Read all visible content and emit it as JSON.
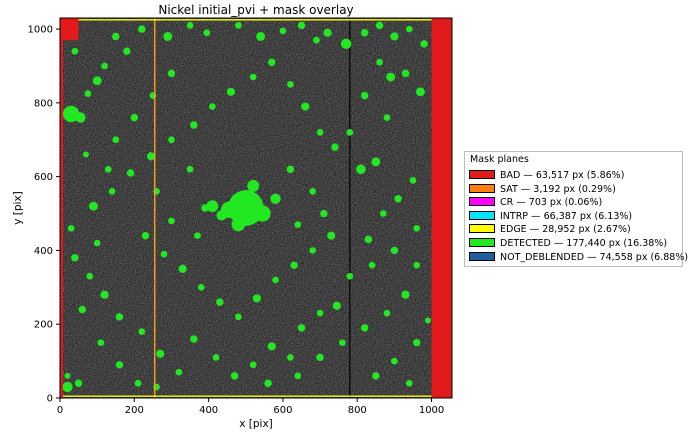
{
  "chart_data": {
    "type": "heatmap",
    "title": "Nickel initial_pvi + mask overlay",
    "xlabel": "x [pix]",
    "ylabel": "y [pix]",
    "xlim": [
      0,
      1055
    ],
    "ylim": [
      0,
      1030
    ],
    "x_ticks": [
      "0",
      "200",
      "400",
      "600",
      "800",
      "1000"
    ],
    "y_ticks": [
      "0",
      "200",
      "400",
      "600",
      "800",
      "1000"
    ],
    "x_tick_values": [
      0,
      200,
      400,
      600,
      800,
      1000
    ],
    "y_tick_values": [
      0,
      200,
      400,
      600,
      800,
      1000
    ],
    "grid": false,
    "legend_placement": "outside-right",
    "legend_title": "Mask planes",
    "series": [
      {
        "name": "BAD — 63,517 px (5.86%)",
        "mask": "BAD",
        "pixels": 63517,
        "percent": 5.86,
        "color": "#e31a1c"
      },
      {
        "name": "SAT — 3,192 px (0.29%)",
        "mask": "SAT",
        "pixels": 3192,
        "percent": 0.29,
        "color": "#ff7f0e"
      },
      {
        "name": "CR — 703 px (0.06%)",
        "mask": "CR",
        "pixels": 703,
        "percent": 0.06,
        "color": "#ff00ff"
      },
      {
        "name": "INTRP — 66,387 px (6.13%)",
        "mask": "INTRP",
        "pixels": 66387,
        "percent": 6.13,
        "color": "#00e5ff"
      },
      {
        "name": "EDGE — 28,952 px (2.67%)",
        "mask": "EDGE",
        "pixels": 28952,
        "percent": 2.67,
        "color": "#ffff00"
      },
      {
        "name": "DETECTED — 177,440 px (16.38%)",
        "mask": "DETECTED",
        "pixels": 177440,
        "percent": 16.38,
        "color": "#22e822"
      },
      {
        "name": "NOT_DEBLENDED — 74,558 px (6.88%)",
        "mask": "NOT_DEBLENDED",
        "pixels": 74558,
        "percent": 6.88,
        "color": "#1f5fa0"
      }
    ],
    "bad_regions": [
      {
        "x": [
          1000,
          1055
        ],
        "y": [
          0,
          1030
        ]
      },
      {
        "x": [
          0,
          50
        ],
        "y": [
          970,
          1030
        ]
      },
      {
        "x": [
          0,
          8
        ],
        "y": [
          0,
          1030
        ]
      }
    ],
    "edge_lines": [
      {
        "axis": "x",
        "value": 255
      },
      {
        "axis": "y",
        "value": 5
      },
      {
        "axis": "y",
        "value": 1025
      }
    ],
    "bad_column": {
      "x": 780
    },
    "detections": [
      [
        500,
        515,
        48
      ],
      [
        455,
        510,
        22
      ],
      [
        545,
        500,
        22
      ],
      [
        480,
        470,
        18
      ],
      [
        410,
        520,
        16
      ],
      [
        580,
        540,
        14
      ],
      [
        520,
        575,
        16
      ],
      [
        435,
        495,
        14
      ],
      [
        390,
        515,
        10
      ],
      [
        30,
        770,
        22
      ],
      [
        55,
        760,
        14
      ],
      [
        20,
        30,
        14
      ],
      [
        50,
        40,
        10
      ],
      [
        20,
        60,
        8
      ],
      [
        100,
        860,
        12
      ],
      [
        75,
        825,
        9
      ],
      [
        150,
        980,
        10
      ],
      [
        220,
        1000,
        10
      ],
      [
        290,
        980,
        12
      ],
      [
        350,
        1010,
        9
      ],
      [
        395,
        990,
        9
      ],
      [
        480,
        1010,
        9
      ],
      [
        540,
        980,
        12
      ],
      [
        600,
        995,
        9
      ],
      [
        650,
        1010,
        10
      ],
      [
        690,
        970,
        9
      ],
      [
        720,
        990,
        11
      ],
      [
        770,
        960,
        14
      ],
      [
        820,
        990,
        10
      ],
      [
        860,
        1010,
        10
      ],
      [
        900,
        980,
        11
      ],
      [
        940,
        1000,
        9
      ],
      [
        980,
        960,
        10
      ],
      [
        970,
        830,
        12
      ],
      [
        930,
        880,
        10
      ],
      [
        880,
        760,
        9
      ],
      [
        890,
        870,
        12
      ],
      [
        850,
        640,
        12
      ],
      [
        810,
        620,
        13
      ],
      [
        950,
        590,
        9
      ],
      [
        910,
        540,
        10
      ],
      [
        870,
        500,
        9
      ],
      [
        960,
        460,
        9
      ],
      [
        830,
        430,
        10
      ],
      [
        780,
        330,
        9
      ],
      [
        745,
        250,
        11
      ],
      [
        700,
        230,
        9
      ],
      [
        650,
        190,
        10
      ],
      [
        620,
        110,
        9
      ],
      [
        570,
        140,
        11
      ],
      [
        520,
        90,
        9
      ],
      [
        470,
        60,
        10
      ],
      [
        420,
        110,
        9
      ],
      [
        360,
        160,
        10
      ],
      [
        320,
        70,
        9
      ],
      [
        270,
        120,
        11
      ],
      [
        220,
        180,
        9
      ],
      [
        160,
        220,
        10
      ],
      [
        120,
        280,
        11
      ],
      [
        80,
        330,
        9
      ],
      [
        40,
        380,
        10
      ],
      [
        30,
        460,
        9
      ],
      [
        90,
        520,
        12
      ],
      [
        140,
        560,
        9
      ],
      [
        190,
        610,
        10
      ],
      [
        245,
        655,
        11
      ],
      [
        300,
        700,
        9
      ],
      [
        360,
        740,
        10
      ],
      [
        410,
        790,
        9
      ],
      [
        460,
        830,
        11
      ],
      [
        520,
        870,
        9
      ],
      [
        570,
        910,
        10
      ],
      [
        620,
        850,
        9
      ],
      [
        660,
        790,
        11
      ],
      [
        700,
        720,
        9
      ],
      [
        740,
        680,
        10
      ],
      [
        780,
        720,
        9
      ],
      [
        820,
        820,
        10
      ],
      [
        860,
        910,
        9
      ],
      [
        150,
        700,
        9
      ],
      [
        200,
        760,
        10
      ],
      [
        250,
        820,
        9
      ],
      [
        300,
        880,
        10
      ],
      [
        120,
        900,
        9
      ],
      [
        180,
        940,
        10
      ],
      [
        40,
        940,
        9
      ],
      [
        230,
        440,
        10
      ],
      [
        280,
        390,
        9
      ],
      [
        330,
        350,
        11
      ],
      [
        380,
        300,
        9
      ],
      [
        430,
        260,
        10
      ],
      [
        480,
        220,
        9
      ],
      [
        530,
        270,
        11
      ],
      [
        580,
        320,
        9
      ],
      [
        630,
        360,
        10
      ],
      [
        680,
        400,
        9
      ],
      [
        730,
        440,
        11
      ],
      [
        100,
        420,
        9
      ],
      [
        60,
        240,
        10
      ],
      [
        110,
        150,
        9
      ],
      [
        160,
        90,
        10
      ],
      [
        210,
        40,
        9
      ],
      [
        260,
        30,
        9
      ],
      [
        560,
        40,
        10
      ],
      [
        640,
        60,
        9
      ],
      [
        700,
        110,
        10
      ],
      [
        760,
        150,
        9
      ],
      [
        820,
        190,
        10
      ],
      [
        880,
        230,
        9
      ],
      [
        930,
        280,
        11
      ],
      [
        960,
        360,
        9
      ],
      [
        900,
        400,
        10
      ],
      [
        840,
        360,
        9
      ],
      [
        960,
        150,
        10
      ],
      [
        900,
        100,
        9
      ],
      [
        850,
        60,
        10
      ],
      [
        940,
        40,
        9
      ],
      [
        990,
        210,
        8
      ],
      [
        130,
        620,
        9
      ],
      [
        70,
        660,
        8
      ],
      [
        260,
        560,
        9
      ],
      [
        300,
        480,
        9
      ],
      [
        620,
        620,
        10
      ],
      [
        680,
        560,
        9
      ],
      [
        710,
        500,
        10
      ],
      [
        350,
        620,
        9
      ],
      [
        370,
        440,
        9
      ],
      [
        640,
        470,
        9
      ]
    ]
  },
  "colors": {
    "background": "#2b2b2b",
    "frame": "#000000"
  }
}
